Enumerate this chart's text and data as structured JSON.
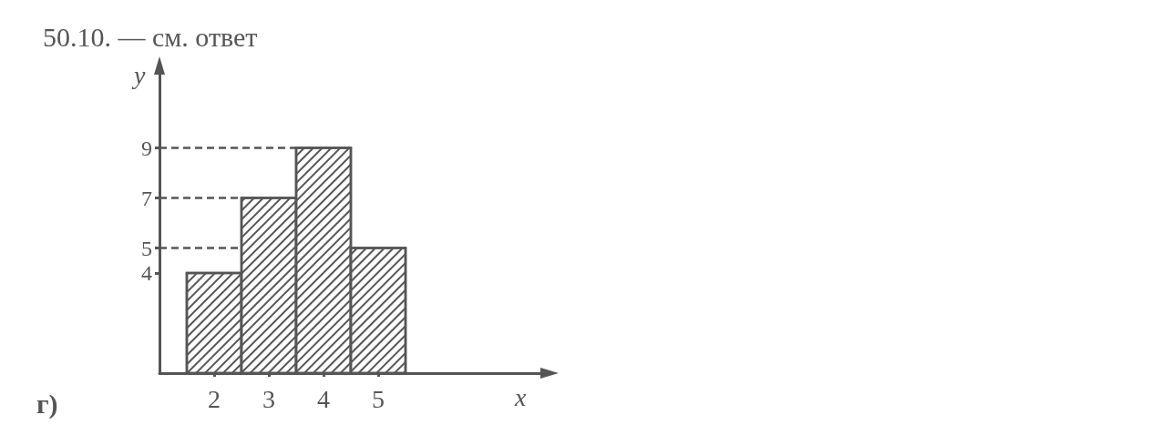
{
  "chart_data": {
    "type": "histogram",
    "title": "50.10. — см. ответ",
    "xlabel": "x",
    "ylabel": "y",
    "annotations": [
      "г)"
    ],
    "bins": [
      1.5,
      2.5,
      3.5,
      4.5,
      5.5
    ],
    "values": [
      4,
      7,
      9,
      5
    ],
    "color": "#555555",
    "xlim": [
      1,
      8
    ],
    "xticks": [
      2,
      3,
      4,
      5
    ],
    "ylim": [
      0,
      12
    ],
    "yticks": [
      4,
      5,
      7,
      9
    ],
    "ref_lines": [
      {
        "axis": "y",
        "value": 9,
        "line_style": "dashed"
      },
      {
        "axis": "y",
        "value": 7,
        "line_style": "dashed"
      },
      {
        "axis": "y",
        "value": 5,
        "line_style": "dashed"
      }
    ],
    "grid": false
  }
}
